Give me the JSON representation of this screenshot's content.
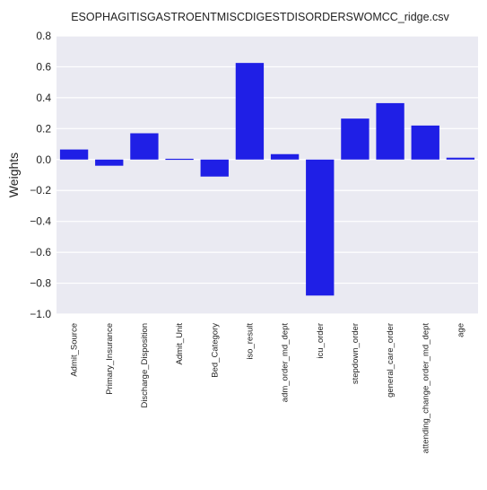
{
  "chart_data": {
    "type": "bar",
    "title": "ESOPHAGITISGASTROENTMISCDIGESTDISORDERSWOMCC_ridge.csv",
    "xlabel": "",
    "ylabel": "Weights",
    "ylim": [
      -1.0,
      0.8
    ],
    "yticks": [
      0.8,
      0.6,
      0.4,
      0.2,
      0.0,
      -0.2,
      -0.4,
      -0.6,
      -0.8,
      -1.0
    ],
    "ytick_labels": [
      "0.8",
      "0.6",
      "0.4",
      "0.2",
      "0.0",
      "−0.2",
      "−0.4",
      "−0.6",
      "−0.8",
      "−1.0"
    ],
    "grid": true,
    "categories": [
      "Admit_Source",
      "Primary_Insurance",
      "Discharge_Disposition",
      "Admit_Unit",
      "Bed_Category",
      "iso_result",
      "adm_order_md_dept",
      "icu_order",
      "stepdown_order",
      "general_care_order",
      "attending_change_order_md_dept",
      "age"
    ],
    "values": [
      0.065,
      -0.04,
      0.17,
      0.005,
      -0.11,
      0.625,
      0.035,
      -0.88,
      0.265,
      0.365,
      0.22,
      0.012
    ],
    "bar_color": "#1f1fe6",
    "background_color": "#eaeaf2",
    "grid_color": "#ffffff"
  }
}
